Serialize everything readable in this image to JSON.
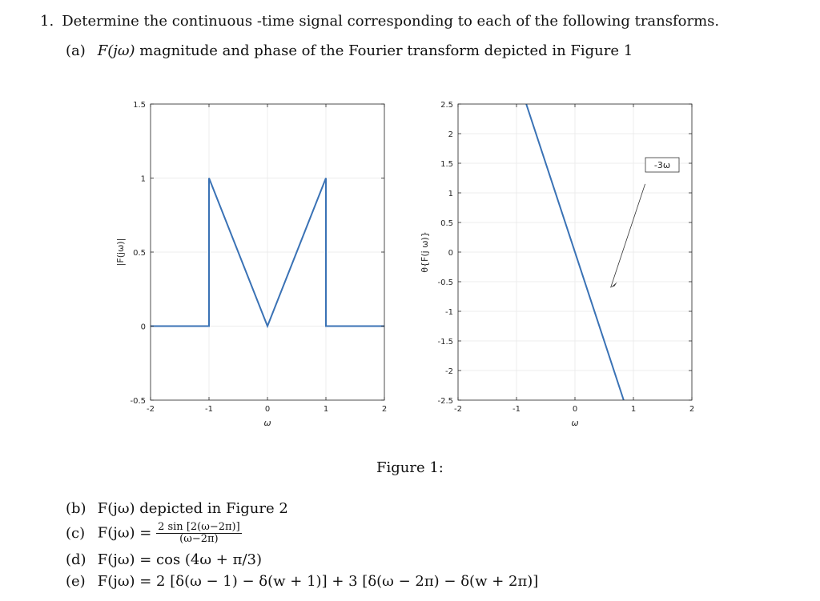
{
  "problem": {
    "number": "1.",
    "intro": "Determine the continuous -time signal corresponding to each of the following transforms.",
    "part_a": {
      "label": "(a)",
      "text_lhs": "F(jω)",
      "text_rest": "magnitude and phase of the Fourier transform depicted in Figure 1"
    },
    "figure_caption": "Figure 1:",
    "part_b": {
      "label": "(b)",
      "text": "F(jω) depicted in Figure 2"
    },
    "part_c": {
      "label": "(c)",
      "lhs": "F(jω) =",
      "numerator": "2 sin [2(ω−2π)]",
      "denominator": "(ω−2π)"
    },
    "part_d": {
      "label": "(d)",
      "text": "F(jω) = cos (4ω + π/3)"
    },
    "part_e": {
      "label": "(e)",
      "text": "F(jω) = 2 [δ(ω − 1) − δ(w + 1)] + 3 [δ(ω − 2π) − δ(w + 2π)]"
    }
  },
  "chart_data": [
    {
      "type": "line",
      "xlabel": "ω",
      "ylabel": "|F(jω)|",
      "xlim": [
        -2,
        2
      ],
      "ylim": [
        -0.5,
        1.5
      ],
      "xticks": [
        "-2",
        "-1",
        "0",
        "1",
        "2"
      ],
      "yticks": [
        "-0.5",
        "0",
        "0.5",
        "1",
        "1.5"
      ],
      "grid": true,
      "color": "#3a72b5",
      "x": [
        -2,
        -1,
        -1,
        0,
        1,
        1,
        2
      ],
      "y": [
        0,
        0,
        1,
        0,
        1,
        0,
        0
      ]
    },
    {
      "type": "line",
      "xlabel": "ω",
      "ylabel": "θ{F(j ω)}",
      "xlim": [
        -2,
        2
      ],
      "ylim": [
        -2.5,
        2.5
      ],
      "xticks": [
        "-2",
        "-1",
        "0",
        "1",
        "2"
      ],
      "yticks": [
        "-2.5",
        "-2",
        "-1.5",
        "-1",
        "-0.5",
        "0",
        "0.5",
        "1",
        "1.5",
        "2",
        "2.5"
      ],
      "grid": true,
      "color": "#3a72b5",
      "x": [
        -0.8333,
        0.8333
      ],
      "y": [
        2.5,
        -2.5
      ],
      "annotation": {
        "text": "-3ω",
        "points_to": [
          0.2,
          -0.6
        ]
      }
    }
  ]
}
